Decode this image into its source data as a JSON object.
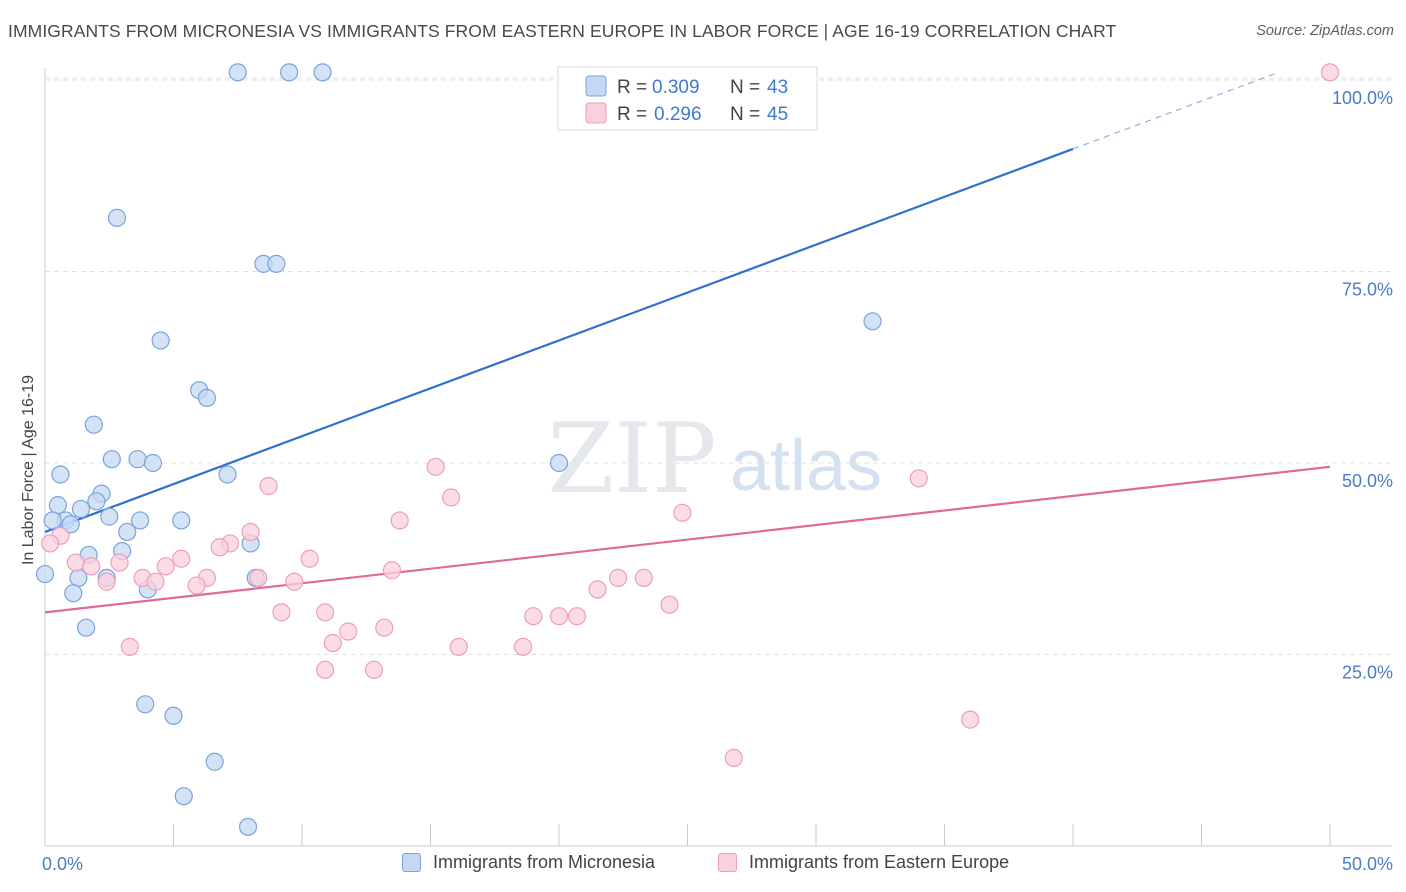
{
  "header": {
    "title": "IMMIGRANTS FROM MICRONESIA VS IMMIGRANTS FROM EASTERN EUROPE IN LABOR FORCE | AGE 16-19 CORRELATION CHART",
    "source": "Source: ZipAtlas.com"
  },
  "watermark": {
    "zip": "ZIP",
    "atlas": "atlas"
  },
  "colors": {
    "blue_fill": "#c5d8f3",
    "blue_stroke": "#7ba3dc",
    "blue_line": "#2e6fcf",
    "pink_fill": "#f9d0dd",
    "pink_stroke": "#eaa0b8",
    "pink_line": "#e06a93",
    "tick_label": "#4a7cc8",
    "grid": "#dde1e6"
  },
  "legend": {
    "rows": [
      {
        "r_label": "R =",
        "r_value": "0.309",
        "n_label": "N =",
        "n_value": "43"
      },
      {
        "r_label": "R =",
        "r_value": "0.296",
        "n_label": "N =",
        "n_value": "45"
      }
    ]
  },
  "chart_data": {
    "type": "scatter",
    "title": "IMMIGRANTS FROM MICRONESIA VS IMMIGRANTS FROM EASTERN EUROPE IN LABOR FORCE | AGE 16-19 CORRELATION CHART",
    "xlabel": "",
    "ylabel": "In Labor Force | Age 16-19",
    "xlim": [
      0,
      50
    ],
    "ylim": [
      0,
      103
    ],
    "x_tick_labels": [
      "0.0%",
      "50.0%"
    ],
    "y_ticks": [
      25,
      50,
      75,
      100
    ],
    "y_tick_labels": [
      "25.0%",
      "50.0%",
      "75.0%",
      "100.0%"
    ],
    "grid": true,
    "legend_position": "top-center",
    "series": [
      {
        "name": "Immigrants from Micronesia",
        "r": 0.309,
        "n": 43,
        "trend": {
          "x0": 0,
          "y0": 41.0,
          "x1": 40,
          "y1": 91.0,
          "dash_to_x": 48,
          "dash_to_y": 101.0
        },
        "points": [
          [
            7.5,
            101.0
          ],
          [
            9.5,
            101.0
          ],
          [
            10.8,
            101.0
          ],
          [
            2.8,
            82.0
          ],
          [
            8.5,
            76.0
          ],
          [
            9.0,
            76.0
          ],
          [
            4.5,
            66.0
          ],
          [
            6.0,
            59.5
          ],
          [
            6.3,
            58.5
          ],
          [
            1.9,
            55.0
          ],
          [
            2.6,
            50.5
          ],
          [
            3.6,
            50.5
          ],
          [
            4.2,
            50.0
          ],
          [
            0.6,
            48.5
          ],
          [
            7.1,
            48.5
          ],
          [
            20.0,
            50.0
          ],
          [
            32.2,
            68.5
          ],
          [
            2.2,
            46.0
          ],
          [
            0.5,
            44.5
          ],
          [
            1.4,
            44.0
          ],
          [
            2.0,
            45.0
          ],
          [
            2.5,
            43.0
          ],
          [
            0.8,
            42.5
          ],
          [
            0.3,
            42.5
          ],
          [
            3.7,
            42.5
          ],
          [
            5.3,
            42.5
          ],
          [
            1.0,
            42.0
          ],
          [
            3.2,
            41.0
          ],
          [
            8.0,
            39.5
          ],
          [
            3.0,
            38.5
          ],
          [
            1.7,
            38.0
          ],
          [
            0.0,
            35.5
          ],
          [
            1.3,
            35.0
          ],
          [
            2.4,
            35.0
          ],
          [
            8.2,
            35.0
          ],
          [
            4.0,
            33.5
          ],
          [
            1.1,
            33.0
          ],
          [
            1.6,
            28.5
          ],
          [
            3.9,
            18.5
          ],
          [
            5.0,
            17.0
          ],
          [
            6.6,
            11.0
          ],
          [
            5.4,
            6.5
          ],
          [
            7.9,
            2.5
          ]
        ]
      },
      {
        "name": "Immigrants from Eastern Europe",
        "r": 0.296,
        "n": 45,
        "trend": {
          "x0": 0,
          "y0": 30.5,
          "x1": 50,
          "y1": 49.5
        },
        "points": [
          [
            50.0,
            101.0
          ],
          [
            34.0,
            48.0
          ],
          [
            15.2,
            49.5
          ],
          [
            15.8,
            45.5
          ],
          [
            24.8,
            43.5
          ],
          [
            8.7,
            47.0
          ],
          [
            13.8,
            42.5
          ],
          [
            0.6,
            40.5
          ],
          [
            8.0,
            41.0
          ],
          [
            7.2,
            39.5
          ],
          [
            6.8,
            39.0
          ],
          [
            5.3,
            37.5
          ],
          [
            10.3,
            37.5
          ],
          [
            1.2,
            37.0
          ],
          [
            2.9,
            37.0
          ],
          [
            1.8,
            36.5
          ],
          [
            4.7,
            36.5
          ],
          [
            13.5,
            36.0
          ],
          [
            3.8,
            35.0
          ],
          [
            6.3,
            35.0
          ],
          [
            8.3,
            35.0
          ],
          [
            22.3,
            35.0
          ],
          [
            23.3,
            35.0
          ],
          [
            2.4,
            34.5
          ],
          [
            4.3,
            34.5
          ],
          [
            9.7,
            34.5
          ],
          [
            5.9,
            34.0
          ],
          [
            21.5,
            33.5
          ],
          [
            24.3,
            31.5
          ],
          [
            9.2,
            30.5
          ],
          [
            10.9,
            30.5
          ],
          [
            19.0,
            30.0
          ],
          [
            20.0,
            30.0
          ],
          [
            20.7,
            30.0
          ],
          [
            13.2,
            28.5
          ],
          [
            11.8,
            28.0
          ],
          [
            11.2,
            26.5
          ],
          [
            3.3,
            26.0
          ],
          [
            16.1,
            26.0
          ],
          [
            18.6,
            26.0
          ],
          [
            10.9,
            23.0
          ],
          [
            12.8,
            23.0
          ],
          [
            36.0,
            16.5
          ],
          [
            26.8,
            11.5
          ],
          [
            0.2,
            39.5
          ]
        ]
      }
    ]
  },
  "bottom_legend": {
    "items": [
      {
        "label": "Immigrants from Micronesia"
      },
      {
        "label": "Immigrants from Eastern Europe"
      }
    ]
  }
}
